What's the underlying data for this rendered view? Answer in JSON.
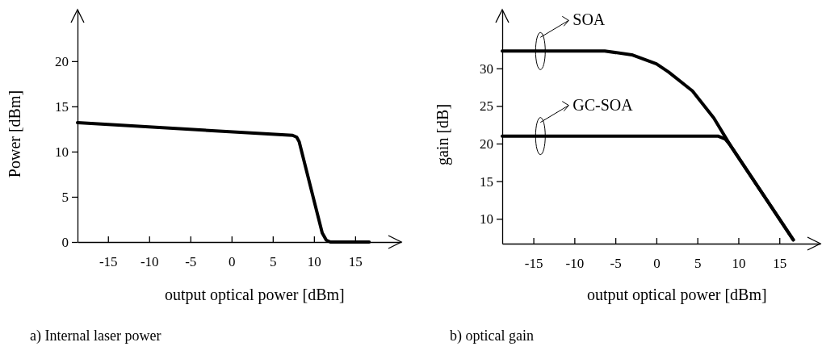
{
  "chart_data": [
    {
      "type": "line",
      "title": "a) Internal laser power",
      "xlabel": "output optical power [dBm]",
      "ylabel": "Power [dBm]",
      "xlim": [
        -18.7,
        20.6
      ],
      "ylim": [
        0,
        25.7
      ],
      "xticks": [
        -15,
        -10,
        -5,
        0,
        5,
        10,
        15
      ],
      "yticks": [
        0,
        5,
        10,
        15,
        20
      ],
      "grid": false,
      "marker": "none",
      "line_style": "solid",
      "series": [
        {
          "color": "#000000",
          "x": [
            -18.7,
            7.4,
            7.9,
            8.2,
            11.0,
            11.5,
            12.0,
            16.7
          ],
          "values": [
            13.2,
            11.8,
            11.6,
            11.1,
            1.0,
            0.2,
            0,
            0
          ]
        }
      ]
    },
    {
      "type": "line",
      "title": "b) optical gain",
      "xlabel": "output optical power [dBm]",
      "ylabel": "gain [dB]",
      "xlim": [
        -18.8,
        20
      ],
      "ylim": [
        6.7,
        37.8
      ],
      "xticks": [
        -15,
        -10,
        -5,
        0,
        5,
        10,
        15
      ],
      "yticks": [
        10,
        15,
        20,
        25,
        30
      ],
      "grid": false,
      "legend": "top left",
      "marker": "none",
      "line_style": "solid",
      "series": [
        {
          "name": "SOA",
          "color": "#000000",
          "x": [
            -18.8,
            -6.3,
            -3,
            0,
            1.5,
            4.4,
            7,
            9,
            16.7
          ],
          "values": [
            32.3,
            32.3,
            31.8,
            30.6,
            29.5,
            27,
            23.4,
            19.8,
            7.2
          ]
        },
        {
          "name": "GC-SOA",
          "color": "#000000",
          "x": [
            -18.8,
            7.5,
            8.4,
            9,
            16.7
          ],
          "values": [
            21,
            21,
            20.6,
            19.8,
            7.2
          ]
        }
      ]
    }
  ]
}
